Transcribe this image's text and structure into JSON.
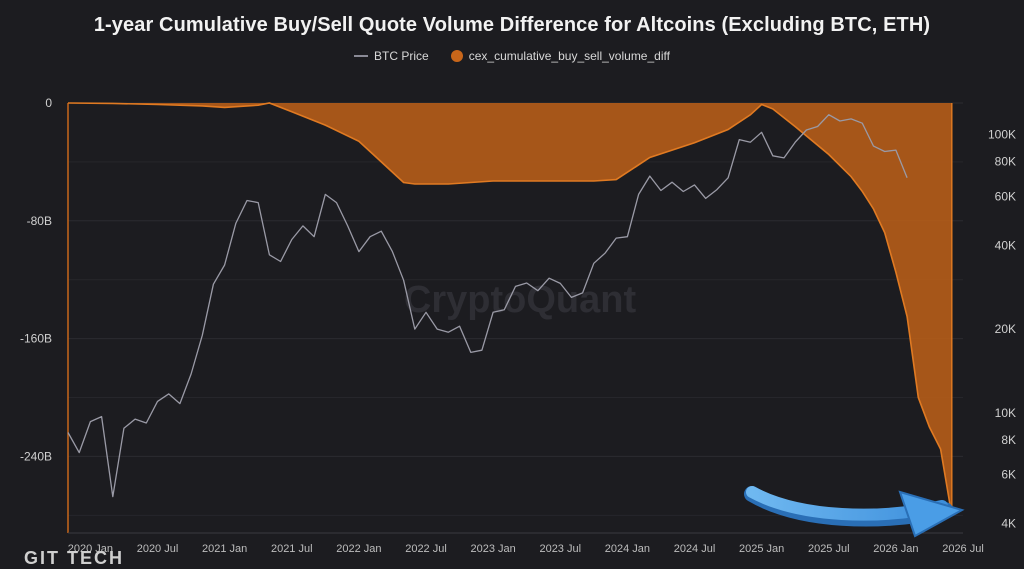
{
  "chart_data": {
    "type": "area",
    "title": "1-year Cumulative Buy/Sell Quote Volume Difference for Altcoins (Excluding BTC, ETH)",
    "watermark": "CryptoQuant",
    "bottom_logo": "GIT TECH",
    "legend": [
      {
        "name": "BTC Price",
        "color": "#8a8a96",
        "style": "line"
      },
      {
        "name": "cex_cumulative_buy_sell_volume_diff",
        "color": "#c8661a",
        "style": "area"
      }
    ],
    "x_ticks": [
      "2020 Jan",
      "2020 Jul",
      "2021 Jan",
      "2021 Jul",
      "2022 Jan",
      "2022 Jul",
      "2023 Jan",
      "2023 Jul",
      "2024 Jan",
      "2024 Jul",
      "2025 Jan",
      "2025 Jul",
      "2026 Jan",
      "2026 Jul"
    ],
    "x_range": [
      "2019-11",
      "2026-07"
    ],
    "y_left": {
      "ticks": [
        "0",
        "-80B",
        "-160B",
        "-240B"
      ],
      "values": [
        0,
        -80,
        -160,
        -240
      ],
      "unit": "B",
      "range": [
        -292,
        0
      ]
    },
    "y_right": {
      "scale": "log",
      "ticks": [
        "100K",
        "80K",
        "60K",
        "40K",
        "20K",
        "10K",
        "8K",
        "6K",
        "4K"
      ],
      "values": [
        100000,
        80000,
        60000,
        40000,
        20000,
        10000,
        8000,
        6000,
        4000
      ],
      "range": [
        3700,
        130000
      ]
    },
    "grid": true,
    "series": [
      {
        "name": "cex_cumulative_buy_sell_volume_diff",
        "axis": "left",
        "x": [
          "2019-11",
          "2020-03",
          "2020-07",
          "2020-11",
          "2021-01",
          "2021-04",
          "2021-05",
          "2021-07",
          "2021-10",
          "2022-01",
          "2022-03",
          "2022-05",
          "2022-06",
          "2022-09",
          "2023-01",
          "2023-06",
          "2023-10",
          "2023-12",
          "2024-03",
          "2024-07",
          "2024-10",
          "2024-12",
          "2025-01",
          "2025-02",
          "2025-04",
          "2025-07",
          "2025-09",
          "2025-10",
          "2025-11",
          "2025-12",
          "2026-01",
          "2026-02",
          "2026-03",
          "2026-04",
          "2026-05",
          "2026-06"
        ],
        "values": [
          0,
          -0.3,
          -1,
          -2,
          -3,
          -1.5,
          0,
          -6,
          -15,
          -26,
          -40,
          -54,
          -55,
          -55,
          -53,
          -53,
          -53,
          -52,
          -37,
          -27,
          -18,
          -8,
          -1,
          -4,
          -16,
          -35,
          -50,
          -60,
          -72,
          -88,
          -115,
          -145,
          -200,
          -220,
          -235,
          -280
        ]
      },
      {
        "name": "BTC Price",
        "axis": "right",
        "x": [
          "2019-11",
          "2019-12",
          "2020-01",
          "2020-02",
          "2020-03",
          "2020-04",
          "2020-05",
          "2020-06",
          "2020-07",
          "2020-08",
          "2020-09",
          "2020-10",
          "2020-11",
          "2020-12",
          "2021-01",
          "2021-02",
          "2021-03",
          "2021-04",
          "2021-05",
          "2021-06",
          "2021-07",
          "2021-08",
          "2021-09",
          "2021-10",
          "2021-11",
          "2021-12",
          "2022-01",
          "2022-02",
          "2022-03",
          "2022-04",
          "2022-05",
          "2022-06",
          "2022-07",
          "2022-08",
          "2022-09",
          "2022-10",
          "2022-11",
          "2022-12",
          "2023-01",
          "2023-02",
          "2023-03",
          "2023-04",
          "2023-05",
          "2023-06",
          "2023-07",
          "2023-08",
          "2023-09",
          "2023-10",
          "2023-11",
          "2023-12",
          "2024-01",
          "2024-02",
          "2024-03",
          "2024-04",
          "2024-05",
          "2024-06",
          "2024-07",
          "2024-08",
          "2024-09",
          "2024-10",
          "2024-11",
          "2024-12",
          "2025-01",
          "2025-02",
          "2025-03",
          "2025-04",
          "2025-05",
          "2025-06",
          "2025-07",
          "2025-08",
          "2025-09",
          "2025-10",
          "2025-11",
          "2025-12",
          "2026-01",
          "2026-02"
        ],
        "values": [
          8500,
          7200,
          9300,
          9700,
          5000,
          8800,
          9500,
          9200,
          11000,
          11700,
          10800,
          13800,
          19000,
          29000,
          34000,
          48000,
          58000,
          57000,
          37000,
          35000,
          42000,
          47000,
          43000,
          61000,
          57000,
          47000,
          38000,
          43000,
          45000,
          38000,
          30000,
          20000,
          23000,
          20000,
          19500,
          20500,
          16500,
          16800,
          23000,
          23500,
          28500,
          29300,
          27500,
          30500,
          29200,
          26000,
          27000,
          34500,
          37500,
          42500,
          43000,
          61000,
          71000,
          63000,
          67500,
          62500,
          66000,
          59000,
          63500,
          70000,
          96000,
          94000,
          102000,
          84000,
          82500,
          94000,
          104000,
          107000,
          118000,
          112000,
          114000,
          110000,
          91000,
          87000,
          88000,
          70000
        ]
      }
    ]
  }
}
